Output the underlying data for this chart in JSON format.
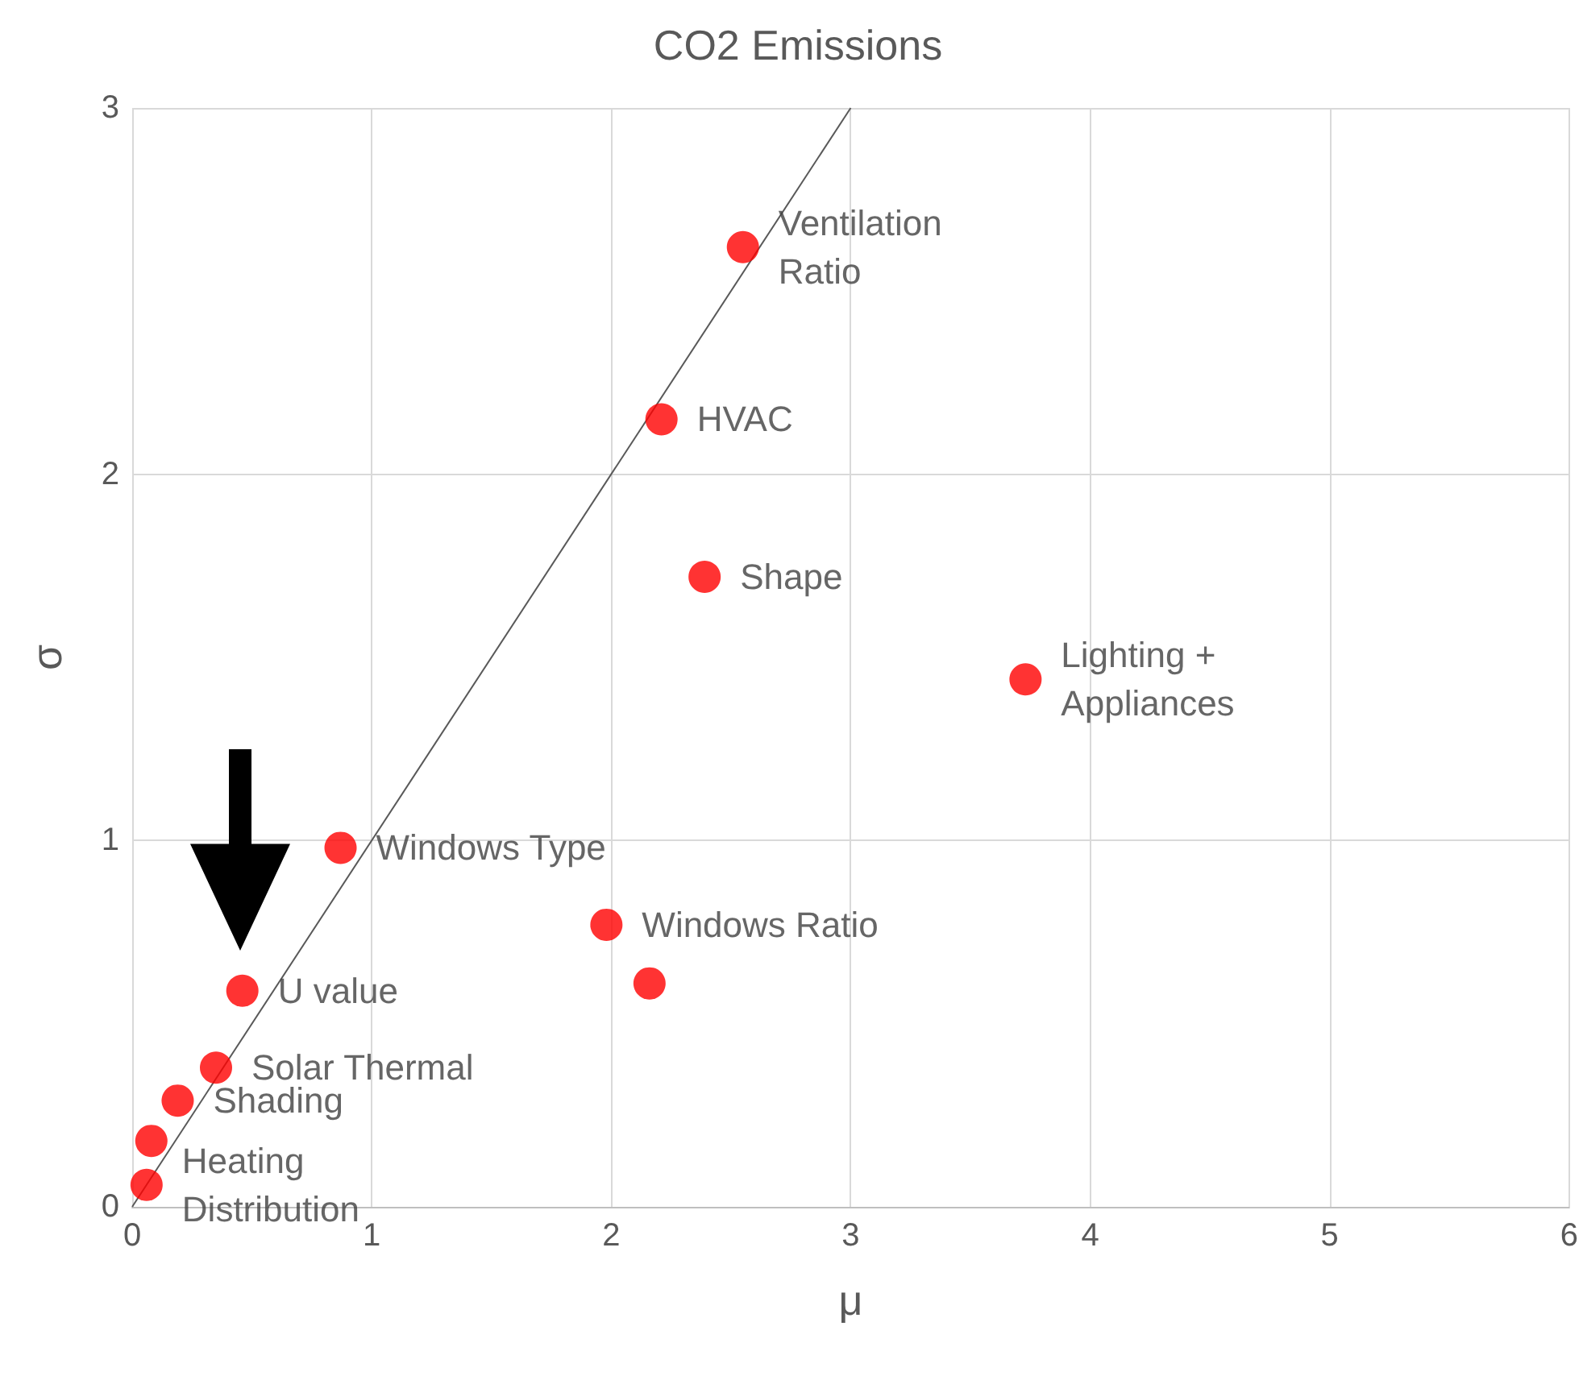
{
  "chart_data": {
    "type": "scatter",
    "title": "CO2 Emissions",
    "xlabel": "μ",
    "ylabel": "σ",
    "xlim": [
      0,
      6
    ],
    "xticks": [
      0,
      1,
      2,
      3,
      4,
      5,
      6
    ],
    "ylim": [
      0,
      3
    ],
    "yticks": [
      0,
      1,
      2,
      3
    ],
    "grid": true,
    "marker": "circle",
    "series": [
      {
        "color": "#ff0000",
        "x": [
          2.55,
          2.21,
          2.39,
          3.73,
          0.87,
          1.98,
          2.16,
          0.46,
          0.35,
          0.19,
          0.08,
          0.06
        ],
        "values": [
          2.62,
          2.15,
          1.72,
          1.44,
          0.98,
          0.77,
          0.61,
          0.59,
          0.38,
          0.29,
          0.18,
          0.06
        ]
      },
      {
        "type": "line",
        "color": "#595959",
        "marker": "none",
        "x": [
          0,
          3
        ],
        "values": [
          0,
          3
        ]
      }
    ],
    "annotations": [
      {
        "text": "Ventilation\nRatio",
        "x": 2.55,
        "y": 2.62
      },
      {
        "text": "HVAC",
        "x": 2.21,
        "y": 2.15
      },
      {
        "text": "Shape",
        "x": 2.39,
        "y": 1.72
      },
      {
        "text": "Lighting +\nAppliances",
        "x": 3.73,
        "y": 1.44
      },
      {
        "text": "Windows Type",
        "x": 0.87,
        "y": 0.98
      },
      {
        "text": "Windows Ratio",
        "x": 1.98,
        "y": 0.77
      },
      {
        "text": "U value",
        "x": 0.46,
        "y": 0.59
      },
      {
        "text": "Solar Thermal",
        "x": 0.35,
        "y": 0.38
      },
      {
        "text": "Shading",
        "x": 0.19,
        "y": 0.29
      },
      {
        "text": "Heating\nDistribution",
        "x": 0.06,
        "y": 0.06
      }
    ]
  }
}
